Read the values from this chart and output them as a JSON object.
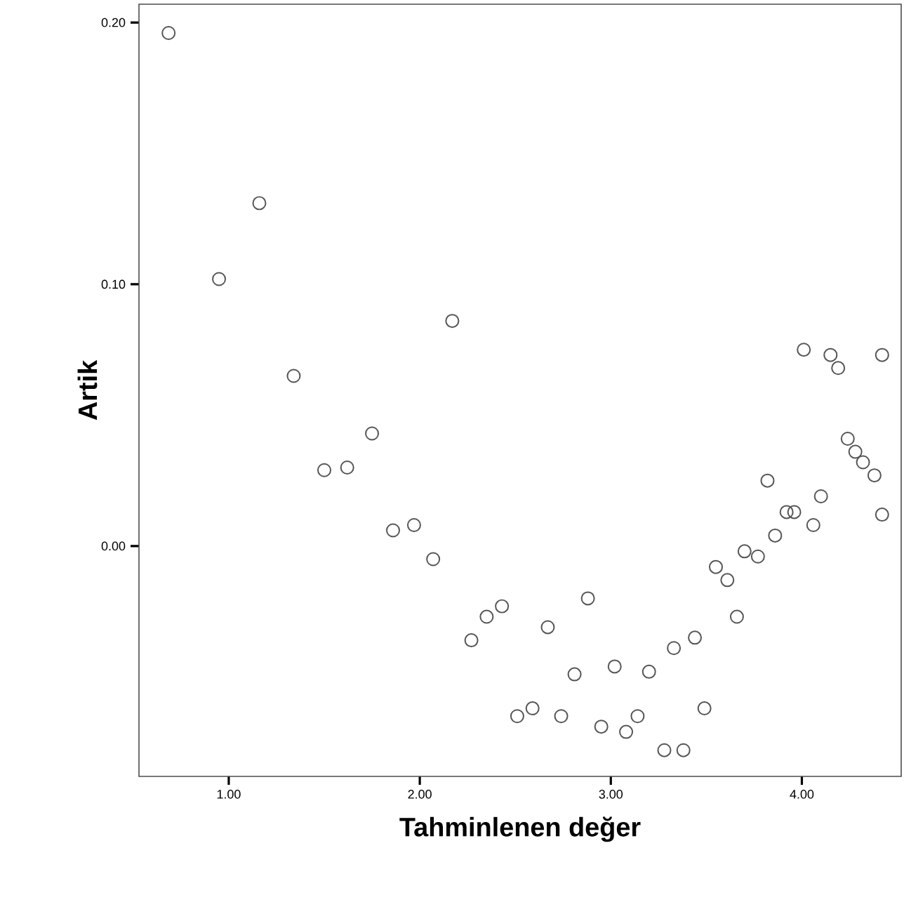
{
  "chart_data": {
    "type": "scatter",
    "xlabel": "Tahminlenen değer",
    "ylabel": "Artik",
    "xlim": [
      0.53,
      4.52
    ],
    "ylim": [
      -0.088,
      0.207
    ],
    "xticks": [
      {
        "value": 1,
        "label": "1.00"
      },
      {
        "value": 2,
        "label": "2.00"
      },
      {
        "value": 3,
        "label": "3.00"
      },
      {
        "value": 4,
        "label": "4.00"
      }
    ],
    "yticks": [
      {
        "value": 0,
        "label": "0.00"
      },
      {
        "value": 0.1,
        "label": "0.10"
      },
      {
        "value": 0.2,
        "label": "0.20"
      }
    ],
    "marker": "circle",
    "color": "#555555",
    "x": [
      0.685,
      0.949,
      1.16,
      1.34,
      1.5,
      1.62,
      1.75,
      1.86,
      1.97,
      2.07,
      2.17,
      2.27,
      2.35,
      2.43,
      2.51,
      2.59,
      2.67,
      2.74,
      2.81,
      2.88,
      2.95,
      3.02,
      3.08,
      3.14,
      3.2,
      3.28,
      3.33,
      3.38,
      3.44,
      3.49,
      3.55,
      3.61,
      3.66,
      3.7,
      3.77,
      3.82,
      3.86,
      3.92,
      3.96,
      4.01,
      4.06,
      4.1,
      4.15,
      4.19,
      4.24,
      4.28,
      4.32,
      4.38,
      4.42,
      4.42
    ],
    "values": [
      0.196,
      0.102,
      0.131,
      0.065,
      0.029,
      0.03,
      0.043,
      0.006,
      0.008,
      -0.005,
      0.086,
      -0.036,
      -0.027,
      -0.023,
      -0.065,
      -0.062,
      -0.031,
      -0.065,
      -0.049,
      -0.02,
      -0.069,
      -0.046,
      -0.071,
      -0.065,
      -0.048,
      -0.078,
      -0.039,
      -0.078,
      -0.035,
      -0.062,
      -0.008,
      -0.013,
      -0.027,
      -0.002,
      -0.004,
      0.025,
      0.004,
      0.013,
      0.013,
      0.075,
      0.008,
      0.019,
      0.073,
      0.068,
      0.041,
      0.036,
      0.032,
      0.027,
      0.073,
      0.012
    ]
  }
}
